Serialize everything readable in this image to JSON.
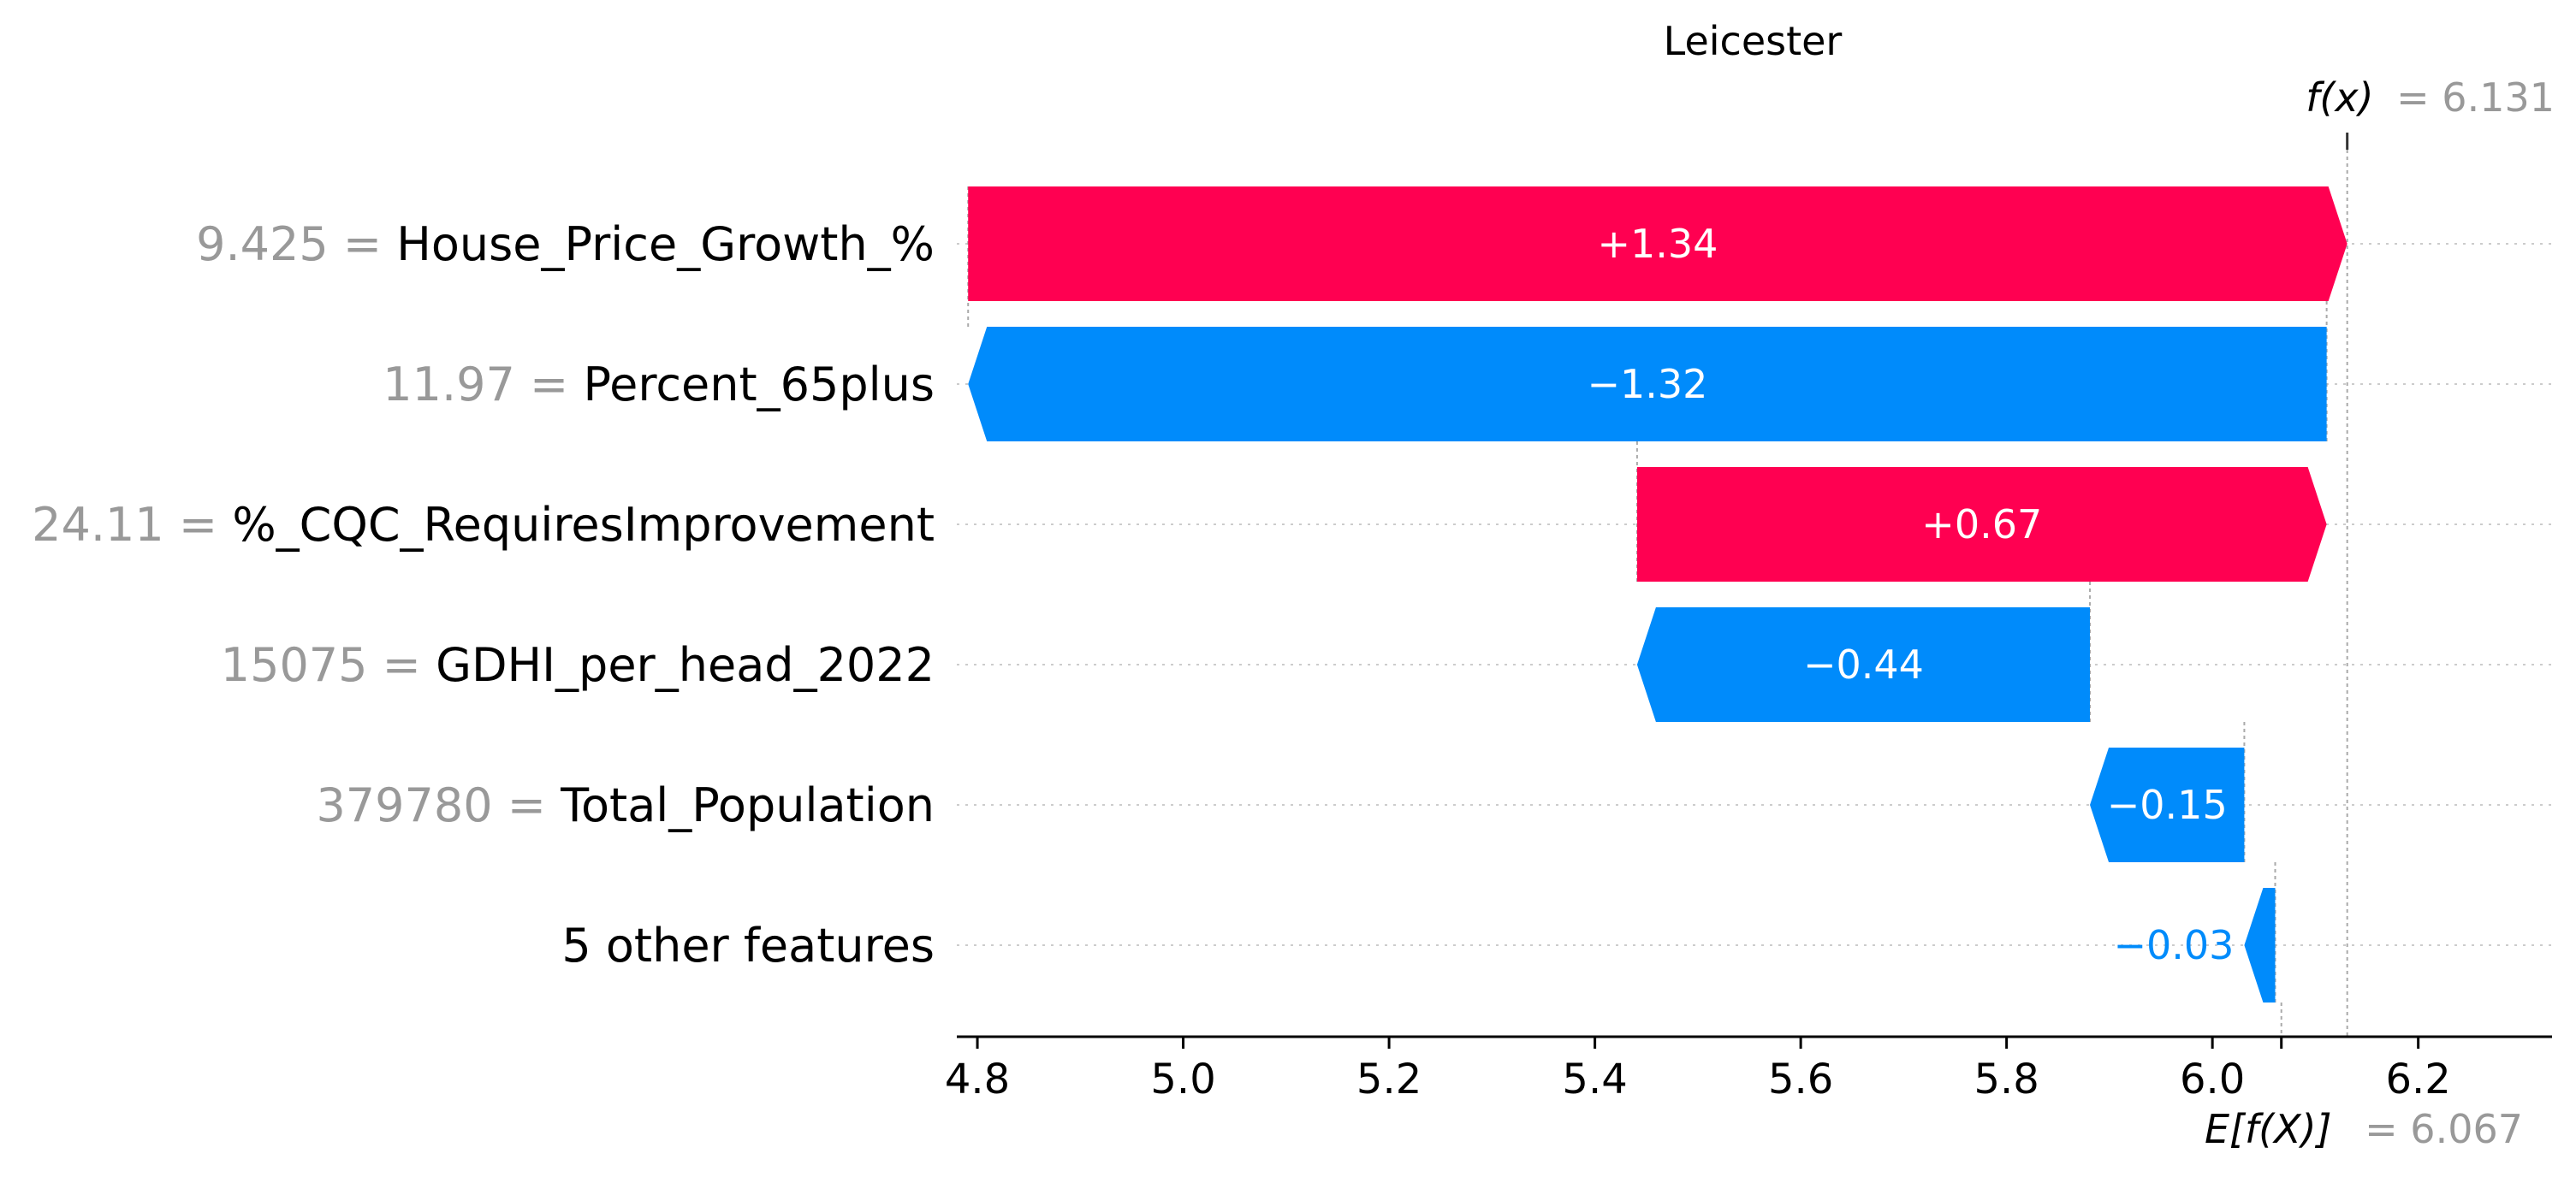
{
  "chart_data": {
    "type": "waterfall",
    "title": "Leicester",
    "base_value": 6.067,
    "output_value": 6.131,
    "base_value_label": "E[f(X)]",
    "base_value_text": "= 6.067",
    "output_value_label": "f(x)",
    "output_value_text": "= 6.131",
    "xlim": [
      4.78,
      6.33
    ],
    "x_ticks": [
      4.8,
      5.0,
      5.2,
      5.4,
      5.6,
      5.8,
      6.0,
      6.2
    ],
    "x_tick_labels": [
      "4.8",
      "5.0",
      "5.2",
      "5.4",
      "5.6",
      "5.8",
      "6.0",
      "6.2"
    ],
    "features": [
      {
        "value_text": "9.425 =",
        "name": "House_Price_Growth_%",
        "contribution": 1.34,
        "contribution_label": "+1.34"
      },
      {
        "value_text": "11.97 =",
        "name": "Percent_65plus",
        "contribution": -1.32,
        "contribution_label": "−1.32"
      },
      {
        "value_text": "24.11 =",
        "name": "%_CQC_RequiresImprovement",
        "contribution": 0.67,
        "contribution_label": "+0.67"
      },
      {
        "value_text": "15075 =",
        "name": "GDHI_per_head_2022",
        "contribution": -0.44,
        "contribution_label": "−0.44"
      },
      {
        "value_text": "379780 =",
        "name": "Total_Population",
        "contribution": -0.15,
        "contribution_label": "−0.15"
      },
      {
        "value_text": "",
        "name": "5 other features",
        "contribution": -0.03,
        "contribution_label": "−0.03"
      }
    ],
    "colors": {
      "positive": "#ff0051",
      "negative": "#008bfb",
      "value_gray": "#999999",
      "grid": "#cccccc"
    }
  }
}
